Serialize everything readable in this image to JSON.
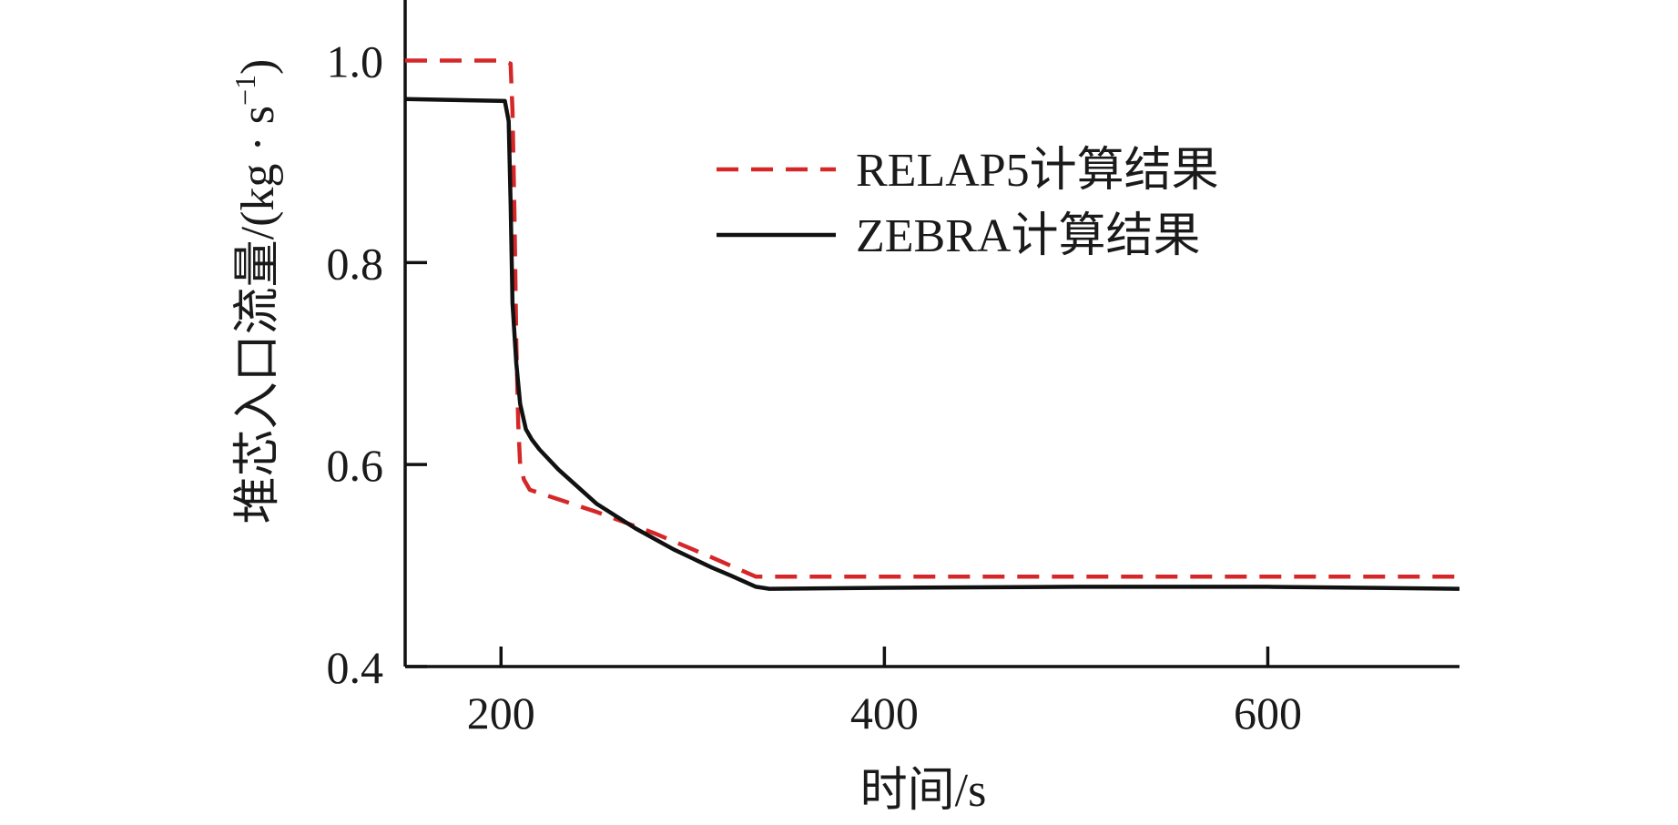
{
  "chart_data": {
    "type": "line",
    "title": "",
    "xlabel": "时间/s",
    "ylabel_main": "堆芯入口流量/(kg · s",
    "ylabel_sup": "−1",
    "ylabel_close": ")",
    "xlim": [
      150,
      700
    ],
    "ylim": [
      0.4,
      1.06
    ],
    "xticks": [
      200,
      400,
      600
    ],
    "xtick_labels": [
      "200",
      "400",
      "600"
    ],
    "yticks": [
      0.4,
      0.6,
      0.8,
      1.0
    ],
    "ytick_labels": [
      "0.4",
      "0.6",
      "0.8",
      "1.0"
    ],
    "grid": false,
    "legend_position": "top-right",
    "series": [
      {
        "name": "RELAP5计算结果",
        "style": "dashed",
        "color": "#d62728",
        "x": [
          150,
          200,
          205,
          206,
          207,
          208,
          209,
          210,
          212,
          215,
          250,
          280,
          310,
          333,
          400,
          500,
          600,
          700
        ],
        "y": [
          1.0,
          1.0,
          0.997,
          0.95,
          0.85,
          0.72,
          0.64,
          0.6,
          0.585,
          0.575,
          0.553,
          0.532,
          0.508,
          0.489,
          0.489,
          0.489,
          0.489,
          0.489
        ]
      },
      {
        "name": "ZEBRA计算结果",
        "style": "solid",
        "color": "#111111",
        "x": [
          150,
          202,
          203,
          204,
          205,
          206,
          208,
          210,
          213,
          216,
          220,
          230,
          250,
          270,
          290,
          310,
          320,
          333,
          340,
          400,
          500,
          600,
          700
        ],
        "y": [
          0.962,
          0.96,
          0.95,
          0.94,
          0.86,
          0.76,
          0.7,
          0.66,
          0.635,
          0.625,
          0.615,
          0.595,
          0.561,
          0.537,
          0.516,
          0.498,
          0.49,
          0.479,
          0.477,
          0.478,
          0.479,
          0.479,
          0.477
        ]
      }
    ]
  }
}
